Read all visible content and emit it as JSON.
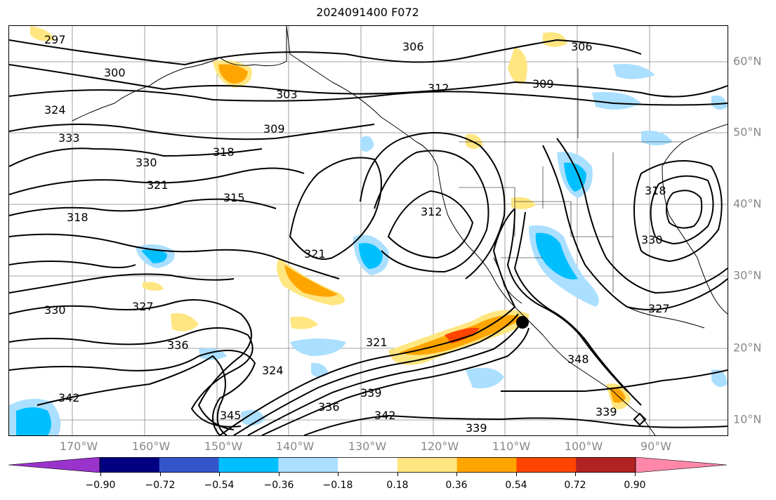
{
  "title": "2024091400 F072",
  "latitude_labels": [
    "60°N",
    "50°N",
    "40°N",
    "30°N",
    "20°N",
    "10°N"
  ],
  "longitude_labels": [
    "170°W",
    "160°W",
    "150°W",
    "140°W",
    "130°W",
    "120°W",
    "110°W",
    "100°W",
    "90°W"
  ],
  "colorbar": {
    "ticks": [
      "−0.90",
      "−0.72",
      "−0.54",
      "−0.36",
      "−0.18",
      "0.18",
      "0.36",
      "0.54",
      "0.72",
      "0.90"
    ],
    "colors": [
      "#9933cc",
      "#000080",
      "#3355cc",
      "#00bfff",
      "#aadfff",
      "#ffffff",
      "#ffe680",
      "#ffa500",
      "#ff4500",
      "#b22222",
      "#ff88aa"
    ]
  },
  "contour_labels": [
    "297",
    "300",
    "303",
    "306",
    "306",
    "309",
    "309",
    "312",
    "312",
    "315",
    "318",
    "318",
    "318",
    "321",
    "321",
    "321",
    "324",
    "324",
    "327",
    "327",
    "330",
    "330",
    "330",
    "333",
    "336",
    "336",
    "339",
    "339",
    "339",
    "342",
    "342",
    "345",
    "348"
  ],
  "marker": "black-dot"
}
